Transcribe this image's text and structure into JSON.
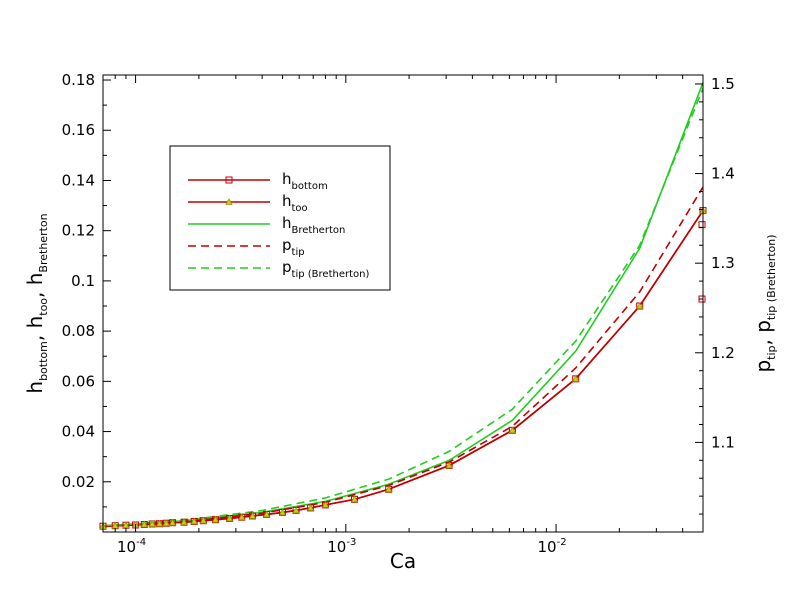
{
  "chart_data": {
    "type": "line",
    "xscale": "log",
    "xlabel": "Ca",
    "xlim": [
      7e-05,
      0.05
    ],
    "x_ticks": [
      {
        "value": 0.0001,
        "base": "10",
        "exp": "-4"
      },
      {
        "value": 0.001,
        "base": "10",
        "exp": "-3"
      },
      {
        "value": 0.01,
        "base": "10",
        "exp": "-2"
      }
    ],
    "ylabel_left": {
      "parts": [
        {
          "t": "h"
        },
        {
          "t": "bottom",
          "sub": true
        },
        {
          "t": ", h"
        },
        {
          "t": "too",
          "sub": true
        },
        {
          "t": ", h"
        },
        {
          "t": "Bretherton",
          "sub": true
        }
      ]
    },
    "ylim_left": [
      0.0,
      0.182
    ],
    "y_ticks_left": [
      "0.02",
      "0.04",
      "0.06",
      "0.08",
      "0.1",
      "0.12",
      "0.14",
      "0.16",
      "0.18"
    ],
    "y_tick_values_left": [
      0.02,
      0.04,
      0.06,
      0.08,
      0.1,
      0.12,
      0.14,
      0.16,
      0.18
    ],
    "ylabel_right": {
      "parts": [
        {
          "t": "p"
        },
        {
          "t": "tip",
          "sub": true
        },
        {
          "t": ", p"
        },
        {
          "t": "tip (Bretherton)",
          "sub": true
        }
      ]
    },
    "ylim_right": [
      1.0,
      1.51
    ],
    "y_ticks_right": [
      "1.1",
      "1.2",
      "1.3",
      "1.4",
      "1.5"
    ],
    "y_tick_values_right": [
      1.1,
      1.2,
      1.3,
      1.4,
      1.5
    ],
    "grid": false,
    "legend_position": "upper-left",
    "series": [
      {
        "name": "h",
        "name_sub": "bottom",
        "axis": "left",
        "color": "#c00000",
        "dash": false,
        "marker": "square",
        "x": [
          7e-05,
          8e-05,
          9e-05,
          0.0001,
          0.00011,
          0.00012,
          0.00013,
          0.00014,
          0.00015,
          0.00017,
          0.00019,
          0.00021,
          0.00024,
          0.00028,
          0.00032,
          0.00036,
          0.00042,
          0.0005,
          0.00058,
          0.00068,
          0.0008,
          0.0011,
          0.0016,
          0.0031,
          0.0062,
          0.0124,
          0.025,
          0.05
        ],
        "y": [
          0.0023,
          0.0025,
          0.0027,
          0.0028,
          0.003,
          0.0032,
          0.0033,
          0.0035,
          0.0037,
          0.0039,
          0.0042,
          0.0045,
          0.0049,
          0.0054,
          0.0059,
          0.0064,
          0.007,
          0.0078,
          0.0086,
          0.0096,
          0.0108,
          0.013,
          0.017,
          0.0265,
          0.0405,
          0.061,
          0.09,
          0.128
        ]
      },
      {
        "name": "h",
        "name_sub": "too",
        "axis": "left",
        "color": "#c00000",
        "dash": false,
        "marker": "triangle",
        "x": [
          7e-05,
          8e-05,
          9e-05,
          0.0001,
          0.00011,
          0.00012,
          0.00013,
          0.00014,
          0.00015,
          0.00017,
          0.00019,
          0.00021,
          0.00024,
          0.00028,
          0.00032,
          0.00036,
          0.00042,
          0.0005,
          0.00058,
          0.00068,
          0.0008,
          0.0011,
          0.0016,
          0.0031,
          0.0062,
          0.0124,
          0.025,
          0.05
        ],
        "y": [
          0.0023,
          0.0025,
          0.0027,
          0.0028,
          0.003,
          0.0032,
          0.0033,
          0.0035,
          0.0037,
          0.0039,
          0.0042,
          0.0045,
          0.0049,
          0.0054,
          0.0059,
          0.0064,
          0.007,
          0.0078,
          0.0086,
          0.0096,
          0.0108,
          0.013,
          0.017,
          0.0265,
          0.0405,
          0.061,
          0.09,
          0.128
        ]
      },
      {
        "name": "h",
        "name_sub": "Bretherton",
        "axis": "left",
        "color": "#22cc22",
        "dash": false,
        "marker": "none",
        "x": [
          7e-05,
          0.0001,
          0.0002,
          0.0004,
          0.0008,
          0.0016,
          0.0031,
          0.0062,
          0.0124,
          0.025,
          0.05
        ],
        "y": [
          0.0025,
          0.0031,
          0.0049,
          0.0078,
          0.0122,
          0.019,
          0.0285,
          0.0445,
          0.072,
          0.113,
          0.179
        ]
      },
      {
        "name": "p",
        "name_sub": "tip",
        "axis": "right",
        "color": "#c00000",
        "dash": true,
        "marker": "none",
        "x": [
          7e-05,
          0.0001,
          0.0002,
          0.0004,
          0.0008,
          0.0016,
          0.0031,
          0.0062,
          0.0124,
          0.025,
          0.05
        ],
        "y": [
          1.006,
          1.008,
          1.013,
          1.021,
          1.033,
          1.052,
          1.078,
          1.118,
          1.183,
          1.268,
          1.385
        ]
      },
      {
        "name": "p",
        "name_sub": "tip (Bretherton)",
        "axis": "right",
        "color": "#22cc22",
        "dash": true,
        "marker": "none",
        "x": [
          7e-05,
          0.0001,
          0.0002,
          0.0004,
          0.0008,
          0.0016,
          0.0031,
          0.0062,
          0.0124,
          0.025,
          0.05
        ],
        "y": [
          1.007,
          1.009,
          1.015,
          1.024,
          1.038,
          1.059,
          1.09,
          1.137,
          1.213,
          1.32,
          1.495
        ]
      }
    ],
    "extra_markers_right": {
      "color": "#c00000",
      "marker": "square",
      "x": [
        0.05,
        0.05
      ],
      "y": [
        1.343,
        1.26
      ]
    }
  }
}
